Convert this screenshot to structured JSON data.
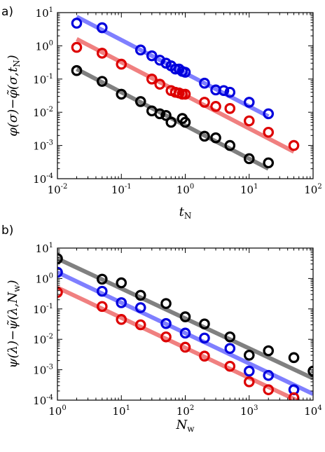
{
  "chart_data": [
    {
      "type": "scatter",
      "panel_label": "a)",
      "xlabel": "t",
      "xlabel_sub": "N",
      "ylabel": "φ(σ)−φ̃(σ,t",
      "ylabel_sub": "N",
      "ylabel_tail": ")",
      "xscale": "log",
      "yscale": "log",
      "xlim": [
        0.01,
        100
      ],
      "ylim": [
        0.0001,
        10
      ],
      "x_ticks": [
        {
          "base": "10",
          "exp": "-2"
        },
        {
          "base": "10",
          "exp": "-1"
        },
        {
          "base": "10",
          "exp": "0"
        },
        {
          "base": "10",
          "exp": "1"
        },
        {
          "base": "10",
          "exp": "2"
        }
      ],
      "y_ticks": [
        {
          "base": "10",
          "exp": "-4"
        },
        {
          "base": "10",
          "exp": "-3"
        },
        {
          "base": "10",
          "exp": "-2"
        },
        {
          "base": "10",
          "exp": "-1"
        },
        {
          "base": "10",
          "exp": "0"
        },
        {
          "base": "10",
          "exp": "1"
        }
      ],
      "series": [
        {
          "color": "#0000dd",
          "line_color": "#7f7fff",
          "points": [
            [
              0.02,
              4.8
            ],
            [
              0.05,
              3.5
            ],
            [
              0.2,
              0.75
            ],
            [
              0.3,
              0.5
            ],
            [
              0.4,
              0.37
            ],
            [
              0.5,
              0.3
            ],
            [
              0.6,
              0.25
            ],
            [
              0.7,
              0.2
            ],
            [
              0.8,
              0.2
            ],
            [
              0.9,
              0.17
            ],
            [
              1.0,
              0.16
            ],
            [
              2.0,
              0.075
            ],
            [
              3.0,
              0.047
            ],
            [
              4.0,
              0.045
            ],
            [
              5.0,
              0.04
            ],
            [
              10.0,
              0.02
            ],
            [
              20.0,
              0.009
            ]
          ],
          "fit": [
            [
              0.02,
              7.5
            ],
            [
              20.0,
              0.0075
            ]
          ]
        },
        {
          "color": "#dd0000",
          "line_color": "#f08080",
          "points": [
            [
              0.02,
              0.9
            ],
            [
              0.05,
              0.6
            ],
            [
              0.1,
              0.28
            ],
            [
              0.3,
              0.1
            ],
            [
              0.4,
              0.07
            ],
            [
              0.6,
              0.045
            ],
            [
              0.7,
              0.04
            ],
            [
              0.8,
              0.038
            ],
            [
              0.9,
              0.035
            ],
            [
              1.0,
              0.035
            ],
            [
              2.0,
              0.02
            ],
            [
              3.0,
              0.015
            ],
            [
              5.0,
              0.013
            ],
            [
              10.0,
              0.0055
            ],
            [
              20.0,
              0.0025
            ],
            [
              50.0,
              0.001
            ]
          ],
          "fit": [
            [
              0.02,
              1.6
            ],
            [
              50.0,
              0.00065
            ]
          ]
        },
        {
          "color": "#000000",
          "line_color": "#808080",
          "points": [
            [
              0.02,
              0.18
            ],
            [
              0.05,
              0.085
            ],
            [
              0.1,
              0.035
            ],
            [
              0.2,
              0.021
            ],
            [
              0.3,
              0.011
            ],
            [
              0.4,
              0.009
            ],
            [
              0.5,
              0.008
            ],
            [
              0.6,
              0.005
            ],
            [
              0.9,
              0.0065
            ],
            [
              1.0,
              0.005
            ],
            [
              2.0,
              0.0019
            ],
            [
              3.0,
              0.0017
            ],
            [
              5.0,
              0.001
            ],
            [
              10.0,
              0.0004
            ],
            [
              20.0,
              0.0003
            ]
          ],
          "fit": [
            [
              0.02,
              0.2
            ],
            [
              20.0,
              0.0002
            ]
          ]
        }
      ]
    },
    {
      "type": "scatter",
      "panel_label": "b)",
      "xlabel": "N",
      "xlabel_sub": "w",
      "ylabel": "ψ(λ)−ψ̃(λ,N",
      "ylabel_sub": "w",
      "ylabel_tail": ")",
      "xscale": "log",
      "yscale": "log",
      "xlim": [
        1,
        10000
      ],
      "ylim": [
        0.0001,
        10
      ],
      "x_ticks": [
        {
          "base": "10",
          "exp": "0"
        },
        {
          "base": "10",
          "exp": "1"
        },
        {
          "base": "10",
          "exp": "2"
        },
        {
          "base": "10",
          "exp": "3"
        },
        {
          "base": "10",
          "exp": "4"
        }
      ],
      "y_ticks": [
        {
          "base": "10",
          "exp": "-4"
        },
        {
          "base": "10",
          "exp": "-3"
        },
        {
          "base": "10",
          "exp": "-2"
        },
        {
          "base": "10",
          "exp": "-1"
        },
        {
          "base": "10",
          "exp": "0"
        },
        {
          "base": "10",
          "exp": "1"
        }
      ],
      "series": [
        {
          "color": "#000000",
          "line_color": "#808080",
          "points": [
            [
              1,
              4.5
            ],
            [
              5,
              0.95
            ],
            [
              10,
              0.72
            ],
            [
              20,
              0.28
            ],
            [
              50,
              0.15
            ],
            [
              100,
              0.055
            ],
            [
              200,
              0.032
            ],
            [
              500,
              0.012
            ],
            [
              1000,
              0.003
            ],
            [
              2000,
              0.0042
            ],
            [
              5000,
              0.0025
            ],
            [
              10000,
              0.0009
            ]
          ],
          "fit": [
            [
              1,
              4.5
            ],
            [
              10000,
              0.00052
            ]
          ]
        },
        {
          "color": "#0000dd",
          "line_color": "#7f7fff",
          "points": [
            [
              1,
              1.6
            ],
            [
              5,
              0.38
            ],
            [
              10,
              0.16
            ],
            [
              20,
              0.11
            ],
            [
              50,
              0.033
            ],
            [
              100,
              0.016
            ],
            [
              200,
              0.011
            ],
            [
              500,
              0.005
            ],
            [
              1000,
              0.0009
            ],
            [
              2000,
              0.00065
            ],
            [
              5000,
              0.00022
            ]
          ],
          "fit": [
            [
              1,
              1.6
            ],
            [
              10000,
              0.00016
            ]
          ]
        },
        {
          "color": "#dd0000",
          "line_color": "#f08080",
          "points": [
            [
              1,
              0.35
            ],
            [
              5,
              0.12
            ],
            [
              10,
              0.045
            ],
            [
              20,
              0.03
            ],
            [
              50,
              0.012
            ],
            [
              100,
              0.0055
            ],
            [
              200,
              0.0028
            ],
            [
              500,
              0.0013
            ],
            [
              1000,
              0.0004
            ],
            [
              2000,
              0.00022
            ],
            [
              5000,
              0.00012
            ]
          ],
          "fit": [
            [
              1,
              0.5
            ],
            [
              10000,
              5.5e-05
            ]
          ]
        }
      ]
    }
  ]
}
